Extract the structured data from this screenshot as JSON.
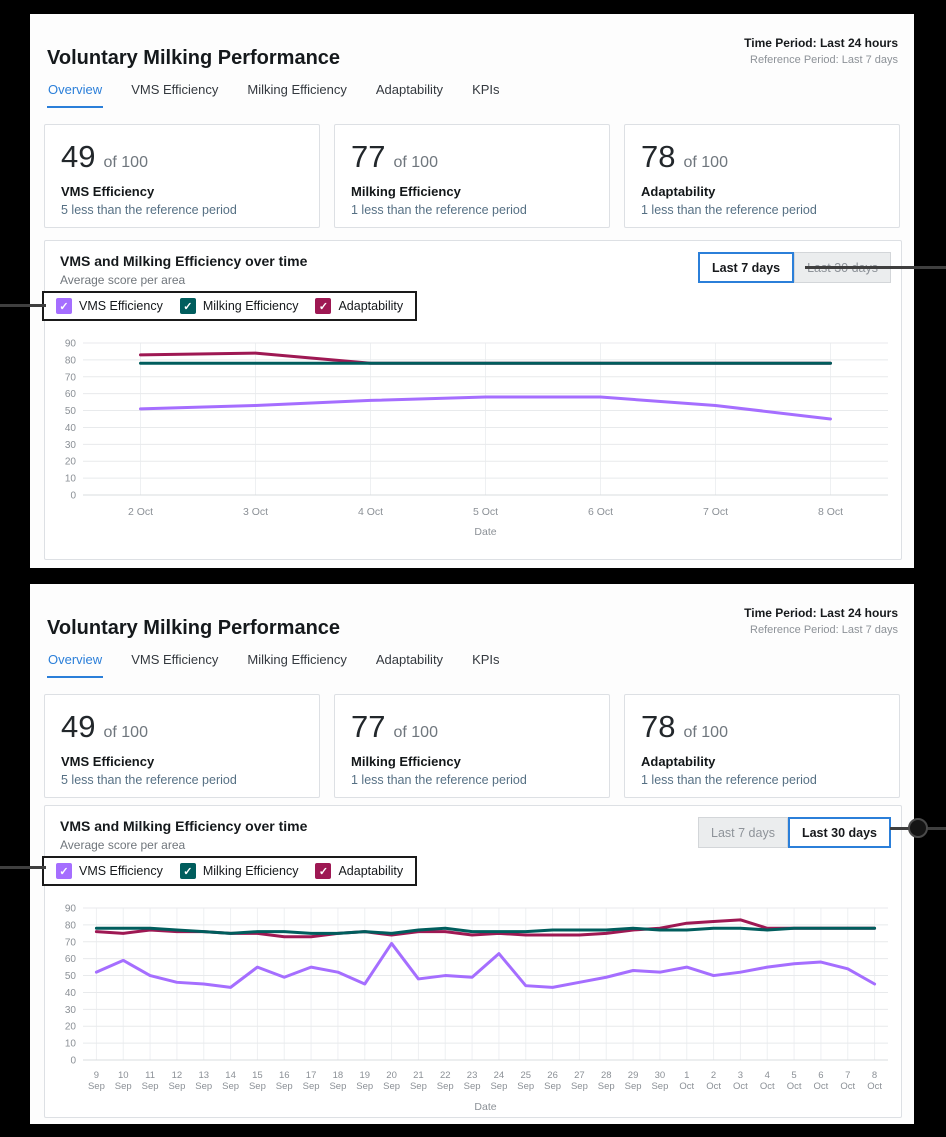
{
  "colors": {
    "accent_blue": "#2b7fd9",
    "vms_purple": "#a56eff",
    "milking_teal": "#005d5d",
    "adaptability_magenta": "#9e1853"
  },
  "panels": [
    {
      "title": "Voluntary Milking Performance",
      "time_period": "Time Period: Last 24 hours",
      "reference_period": "Reference Period: Last 7 days",
      "tabs": [
        {
          "label": "Overview",
          "active": true
        },
        {
          "label": "VMS Efficiency",
          "active": false
        },
        {
          "label": "Milking Efficiency",
          "active": false
        },
        {
          "label": "Adaptability",
          "active": false
        },
        {
          "label": "KPIs",
          "active": false
        }
      ],
      "stat_cards": [
        {
          "score": "49",
          "of": "of 100",
          "label": "VMS Efficiency",
          "delta": "5 less than the reference period"
        },
        {
          "score": "77",
          "of": "of 100",
          "label": "Milking Efficiency",
          "delta": "1 less than the reference period"
        },
        {
          "score": "78",
          "of": "of 100",
          "label": "Adaptability",
          "delta": "1 less than the reference period"
        }
      ],
      "chart_card": {
        "title": "VMS and Milking Efficiency over time",
        "subtitle": "Average score per area",
        "range_buttons": [
          {
            "label": "Last 7 days",
            "active": true
          },
          {
            "label": "Last 30 days",
            "active": false
          }
        ],
        "legend": [
          {
            "label": "VMS Efficiency",
            "color": "#a56eff"
          },
          {
            "label": "Milking Efficiency",
            "color": "#005d5d"
          },
          {
            "label": "Adaptability",
            "color": "#9e1853"
          }
        ]
      }
    },
    {
      "title": "Voluntary Milking Performance",
      "time_period": "Time Period: Last 24 hours",
      "reference_period": "Reference Period: Last 7 days",
      "tabs": [
        {
          "label": "Overview",
          "active": true
        },
        {
          "label": "VMS Efficiency",
          "active": false
        },
        {
          "label": "Milking Efficiency",
          "active": false
        },
        {
          "label": "Adaptability",
          "active": false
        },
        {
          "label": "KPIs",
          "active": false
        }
      ],
      "stat_cards": [
        {
          "score": "49",
          "of": "of 100",
          "label": "VMS Efficiency",
          "delta": "5 less than the reference period"
        },
        {
          "score": "77",
          "of": "of 100",
          "label": "Milking Efficiency",
          "delta": "1 less than the reference period"
        },
        {
          "score": "78",
          "of": "of 100",
          "label": "Adaptability",
          "delta": "1 less than the reference period"
        }
      ],
      "chart_card": {
        "title": "VMS and Milking Efficiency over time",
        "subtitle": "Average score per area",
        "range_buttons": [
          {
            "label": "Last 7 days",
            "active": false
          },
          {
            "label": "Last 30 days",
            "active": true
          }
        ],
        "legend": [
          {
            "label": "VMS Efficiency",
            "color": "#a56eff"
          },
          {
            "label": "Milking Efficiency",
            "color": "#005d5d"
          },
          {
            "label": "Adaptability",
            "color": "#9e1853"
          }
        ]
      }
    }
  ],
  "chart_data": [
    {
      "type": "line",
      "title": "VMS and Milking Efficiency over time",
      "subtitle": "Average score per area",
      "xlabel": "Date",
      "ylabel": "",
      "ylim": [
        0,
        90
      ],
      "ytick_step": 10,
      "grid": true,
      "legend_position": "top-left",
      "two_line_ticks": false,
      "categories": [
        "2 Oct",
        "3 Oct",
        "4 Oct",
        "5 Oct",
        "6 Oct",
        "7 Oct",
        "8 Oct"
      ],
      "series": [
        {
          "name": "VMS Efficiency",
          "color": "#a56eff",
          "values": [
            51,
            53,
            56,
            58,
            58,
            53,
            45
          ]
        },
        {
          "name": "Adaptability",
          "color": "#9e1853",
          "values": [
            83,
            84,
            78,
            78,
            78,
            78,
            78
          ]
        },
        {
          "name": "Milking Efficiency",
          "color": "#005d5d",
          "values": [
            78,
            78,
            78,
            78,
            78,
            78,
            78
          ]
        }
      ]
    },
    {
      "type": "line",
      "title": "VMS and Milking Efficiency over time",
      "subtitle": "Average score per area",
      "xlabel": "Date",
      "ylabel": "",
      "ylim": [
        0,
        90
      ],
      "ytick_step": 10,
      "grid": true,
      "legend_position": "top-left",
      "two_line_ticks": true,
      "categories": [
        "9 Sep",
        "10 Sep",
        "11 Sep",
        "12 Sep",
        "13 Sep",
        "14 Sep",
        "15 Sep",
        "16 Sep",
        "17 Sep",
        "18 Sep",
        "19 Sep",
        "20 Sep",
        "21 Sep",
        "22 Sep",
        "23 Sep",
        "24 Sep",
        "25 Sep",
        "26 Sep",
        "27 Sep",
        "28 Sep",
        "29 Sep",
        "30 Sep",
        "1 Oct",
        "2 Oct",
        "3 Oct",
        "4 Oct",
        "5 Oct",
        "6 Oct",
        "7 Oct",
        "8 Oct"
      ],
      "series": [
        {
          "name": "VMS Efficiency",
          "color": "#a56eff",
          "values": [
            52,
            59,
            50,
            46,
            45,
            43,
            55,
            49,
            55,
            52,
            45,
            69,
            48,
            50,
            49,
            63,
            44,
            43,
            46,
            49,
            53,
            52,
            55,
            50,
            52,
            55,
            57,
            58,
            54,
            45
          ]
        },
        {
          "name": "Adaptability",
          "color": "#9e1853",
          "values": [
            76,
            75,
            77,
            76,
            76,
            75,
            75,
            73,
            73,
            75,
            76,
            74,
            76,
            76,
            74,
            75,
            74,
            74,
            74,
            75,
            77,
            78,
            81,
            82,
            83,
            78,
            78,
            78,
            78,
            78
          ]
        },
        {
          "name": "Milking Efficiency",
          "color": "#005d5d",
          "values": [
            78,
            78,
            78,
            77,
            76,
            75,
            76,
            76,
            75,
            75,
            76,
            75,
            77,
            78,
            76,
            76,
            76,
            77,
            77,
            77,
            78,
            77,
            77,
            78,
            78,
            77,
            78,
            78,
            78,
            78
          ]
        }
      ]
    }
  ]
}
